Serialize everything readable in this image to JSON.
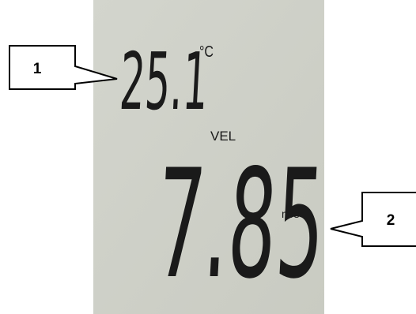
{
  "display": {
    "temperature": "25.1",
    "temperature_unit": "°C",
    "mode_label": "VEL",
    "velocity": "7.85",
    "velocity_unit": "m/s"
  },
  "callouts": [
    {
      "label": "1"
    },
    {
      "label": "2"
    }
  ]
}
